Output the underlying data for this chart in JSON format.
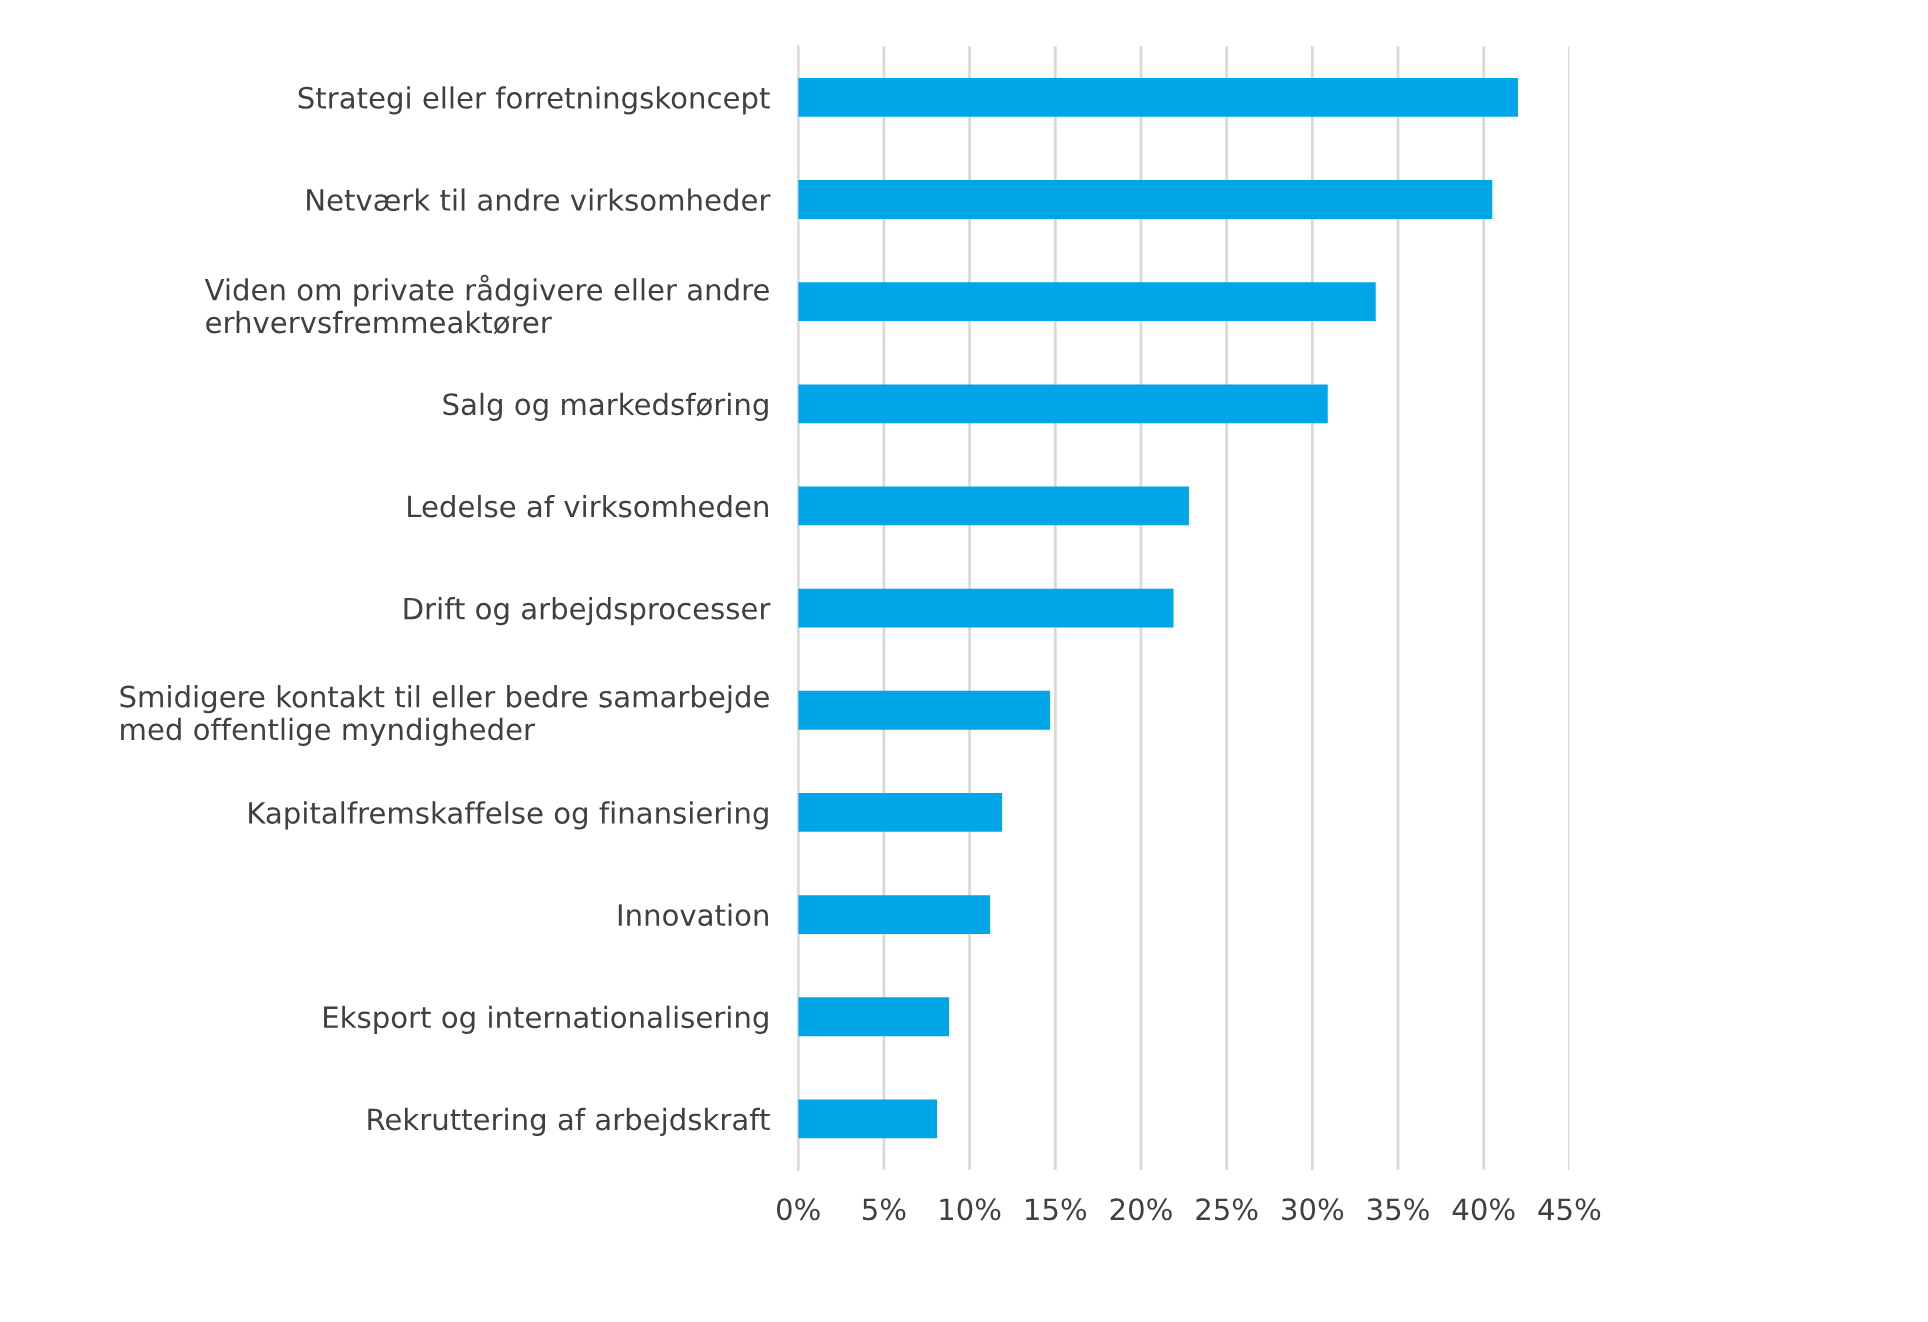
{
  "chart_data": {
    "type": "bar",
    "orientation": "horizontal",
    "categories": [
      "Strategi eller forretningskoncept",
      "Netværk til andre virksomheder",
      "Viden om private rådgivere eller andre\nerhvervsfremmeaktører",
      "Salg og markedsføring",
      "Ledelse af virksomheden",
      "Drift og arbejdsprocesser",
      "Smidigere kontakt til eller bedre samarbejde\nmed offentlige myndigheder",
      "Kapitalfremskaffelse og finansiering",
      "Innovation",
      "Eksport og internationalisering",
      "Rekruttering af arbejdskraft"
    ],
    "values": [
      42.0,
      40.5,
      33.7,
      30.9,
      22.8,
      21.9,
      14.7,
      11.9,
      11.2,
      8.8,
      8.1
    ],
    "color": "#00a6e8",
    "xlim": [
      0,
      45
    ],
    "xticks": [
      {
        "value": 0,
        "label": "0%"
      },
      {
        "value": 5,
        "label": "5%"
      },
      {
        "value": 10,
        "label": "10%"
      },
      {
        "value": 15,
        "label": "15%"
      },
      {
        "value": 20,
        "label": "20%"
      },
      {
        "value": 25,
        "label": "25%"
      },
      {
        "value": 30,
        "label": "30%"
      },
      {
        "value": 35,
        "label": "35%"
      },
      {
        "value": 40,
        "label": "40%"
      },
      {
        "value": 45,
        "label": "45%"
      }
    ],
    "grid": "x"
  }
}
